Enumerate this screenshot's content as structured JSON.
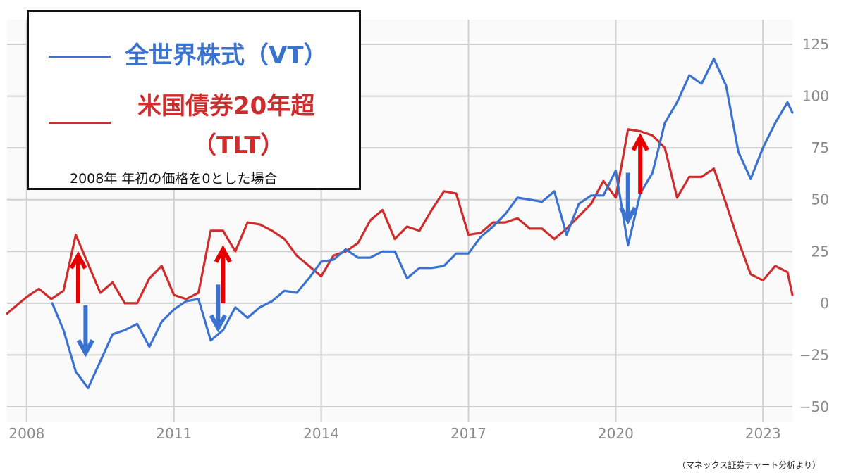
{
  "chart_data": {
    "type": "line",
    "y_axis_side": "right",
    "ylim": [
      -55,
      130
    ],
    "yticks": [
      125,
      100,
      75,
      50,
      25,
      0,
      -25,
      -50
    ],
    "ytick_labels": [
      "125",
      "100",
      "75",
      "50",
      "25",
      "0",
      "−25",
      "−50"
    ],
    "xlim": [
      2007.6,
      2023.6
    ],
    "xticks": [
      2008,
      2011,
      2014,
      2017,
      2020,
      2023
    ],
    "xtick_labels": [
      "2008",
      "2011",
      "2014",
      "2017",
      "2020",
      "2023"
    ],
    "grid": true,
    "series": [
      {
        "name": "全世界株式（VT）",
        "color": "#3a72d0",
        "points": [
          [
            2008.52,
            0
          ],
          [
            2008.75,
            -13
          ],
          [
            2009.0,
            -33
          ],
          [
            2009.25,
            -41
          ],
          [
            2009.5,
            -28
          ],
          [
            2009.75,
            -15
          ],
          [
            2010.0,
            -13
          ],
          [
            2010.25,
            -10
          ],
          [
            2010.5,
            -21
          ],
          [
            2010.75,
            -9
          ],
          [
            2011.0,
            -3
          ],
          [
            2011.25,
            1
          ],
          [
            2011.5,
            2
          ],
          [
            2011.75,
            -18
          ],
          [
            2012.0,
            -13
          ],
          [
            2012.25,
            -2
          ],
          [
            2012.5,
            -7
          ],
          [
            2012.75,
            -2
          ],
          [
            2013.0,
            1
          ],
          [
            2013.25,
            6
          ],
          [
            2013.5,
            5
          ],
          [
            2013.75,
            12
          ],
          [
            2014.0,
            20
          ],
          [
            2014.25,
            21
          ],
          [
            2014.5,
            26
          ],
          [
            2014.75,
            22
          ],
          [
            2015.0,
            22
          ],
          [
            2015.25,
            25
          ],
          [
            2015.5,
            25
          ],
          [
            2015.75,
            12
          ],
          [
            2016.0,
            17
          ],
          [
            2016.25,
            17
          ],
          [
            2016.5,
            18
          ],
          [
            2016.75,
            24
          ],
          [
            2017.0,
            24
          ],
          [
            2017.25,
            32
          ],
          [
            2017.5,
            37
          ],
          [
            2017.75,
            43
          ],
          [
            2018.0,
            51
          ],
          [
            2018.25,
            50
          ],
          [
            2018.5,
            49
          ],
          [
            2018.75,
            54
          ],
          [
            2019.0,
            33
          ],
          [
            2019.25,
            48
          ],
          [
            2019.5,
            52
          ],
          [
            2019.75,
            52
          ],
          [
            2020.0,
            64
          ],
          [
            2020.25,
            28
          ],
          [
            2020.5,
            53
          ],
          [
            2020.75,
            63
          ],
          [
            2021.0,
            87
          ],
          [
            2021.25,
            97
          ],
          [
            2021.5,
            110
          ],
          [
            2021.75,
            106
          ],
          [
            2022.0,
            118
          ],
          [
            2022.25,
            105
          ],
          [
            2022.5,
            73
          ],
          [
            2022.75,
            60
          ],
          [
            2023.0,
            75
          ],
          [
            2023.25,
            87
          ],
          [
            2023.5,
            97
          ],
          [
            2023.6,
            92
          ]
        ]
      },
      {
        "name": "米国債券20年超（TLT）",
        "color": "#cf2d2d",
        "points": [
          [
            2007.6,
            -5
          ],
          [
            2007.75,
            -2
          ],
          [
            2008.0,
            3
          ],
          [
            2008.25,
            7
          ],
          [
            2008.5,
            2
          ],
          [
            2008.75,
            6
          ],
          [
            2009.0,
            33
          ],
          [
            2009.25,
            19
          ],
          [
            2009.5,
            5
          ],
          [
            2009.75,
            10
          ],
          [
            2010.0,
            0
          ],
          [
            2010.25,
            0
          ],
          [
            2010.5,
            12
          ],
          [
            2010.75,
            18
          ],
          [
            2011.0,
            4
          ],
          [
            2011.25,
            2
          ],
          [
            2011.5,
            5
          ],
          [
            2011.75,
            35
          ],
          [
            2012.0,
            35
          ],
          [
            2012.25,
            25
          ],
          [
            2012.5,
            39
          ],
          [
            2012.75,
            38
          ],
          [
            2013.0,
            35
          ],
          [
            2013.25,
            31
          ],
          [
            2013.5,
            23
          ],
          [
            2013.75,
            18
          ],
          [
            2014.0,
            13
          ],
          [
            2014.25,
            23
          ],
          [
            2014.5,
            25
          ],
          [
            2014.75,
            29
          ],
          [
            2015.0,
            40
          ],
          [
            2015.25,
            45
          ],
          [
            2015.5,
            31
          ],
          [
            2015.75,
            37
          ],
          [
            2016.0,
            35
          ],
          [
            2016.25,
            45
          ],
          [
            2016.5,
            54
          ],
          [
            2016.75,
            53
          ],
          [
            2017.0,
            33
          ],
          [
            2017.25,
            34
          ],
          [
            2017.5,
            39
          ],
          [
            2017.75,
            39
          ],
          [
            2018.0,
            41
          ],
          [
            2018.25,
            36
          ],
          [
            2018.5,
            36
          ],
          [
            2018.75,
            31
          ],
          [
            2019.0,
            36
          ],
          [
            2019.25,
            42
          ],
          [
            2019.5,
            48
          ],
          [
            2019.75,
            59
          ],
          [
            2020.0,
            51
          ],
          [
            2020.25,
            84
          ],
          [
            2020.5,
            83
          ],
          [
            2020.75,
            81
          ],
          [
            2021.0,
            75
          ],
          [
            2021.25,
            51
          ],
          [
            2021.5,
            61
          ],
          [
            2021.75,
            61
          ],
          [
            2022.0,
            65
          ],
          [
            2022.25,
            48
          ],
          [
            2022.5,
            30
          ],
          [
            2022.75,
            14
          ],
          [
            2023.0,
            11
          ],
          [
            2023.25,
            18
          ],
          [
            2023.5,
            15
          ],
          [
            2023.6,
            4
          ]
        ]
      }
    ],
    "annotations": {
      "description_note": "",
      "red_up_arrows": [
        {
          "x": 2009.05,
          "from": 0,
          "to": 23
        },
        {
          "x": 2012.0,
          "from": 0,
          "to": 26
        },
        {
          "x": 2020.5,
          "from": 53,
          "to": 80
        }
      ],
      "blue_down_arrows": [
        {
          "x": 2009.2,
          "from": -1,
          "to": -24
        },
        {
          "x": 2011.9,
          "from": 9,
          "to": -12
        },
        {
          "x": 2020.25,
          "from": 63,
          "to": 40
        }
      ]
    }
  },
  "legend": {
    "vt_label": "全世界株式（VT）",
    "tlt_label_line1": "米国債券20年超",
    "tlt_label_line2": "（TLT）",
    "note": "2008年 年初の価格を0とした場合"
  },
  "source": "（マネックス証券チャート分析より）",
  "colors": {
    "vt": "#3a72d0",
    "tlt": "#cf2d2d",
    "red_arrow": "#e60000",
    "blue_arrow": "#3a72d0",
    "plot_bg": "#fafafa",
    "grid": "#cfcfcf",
    "tick_text": "#8a8a8a"
  }
}
